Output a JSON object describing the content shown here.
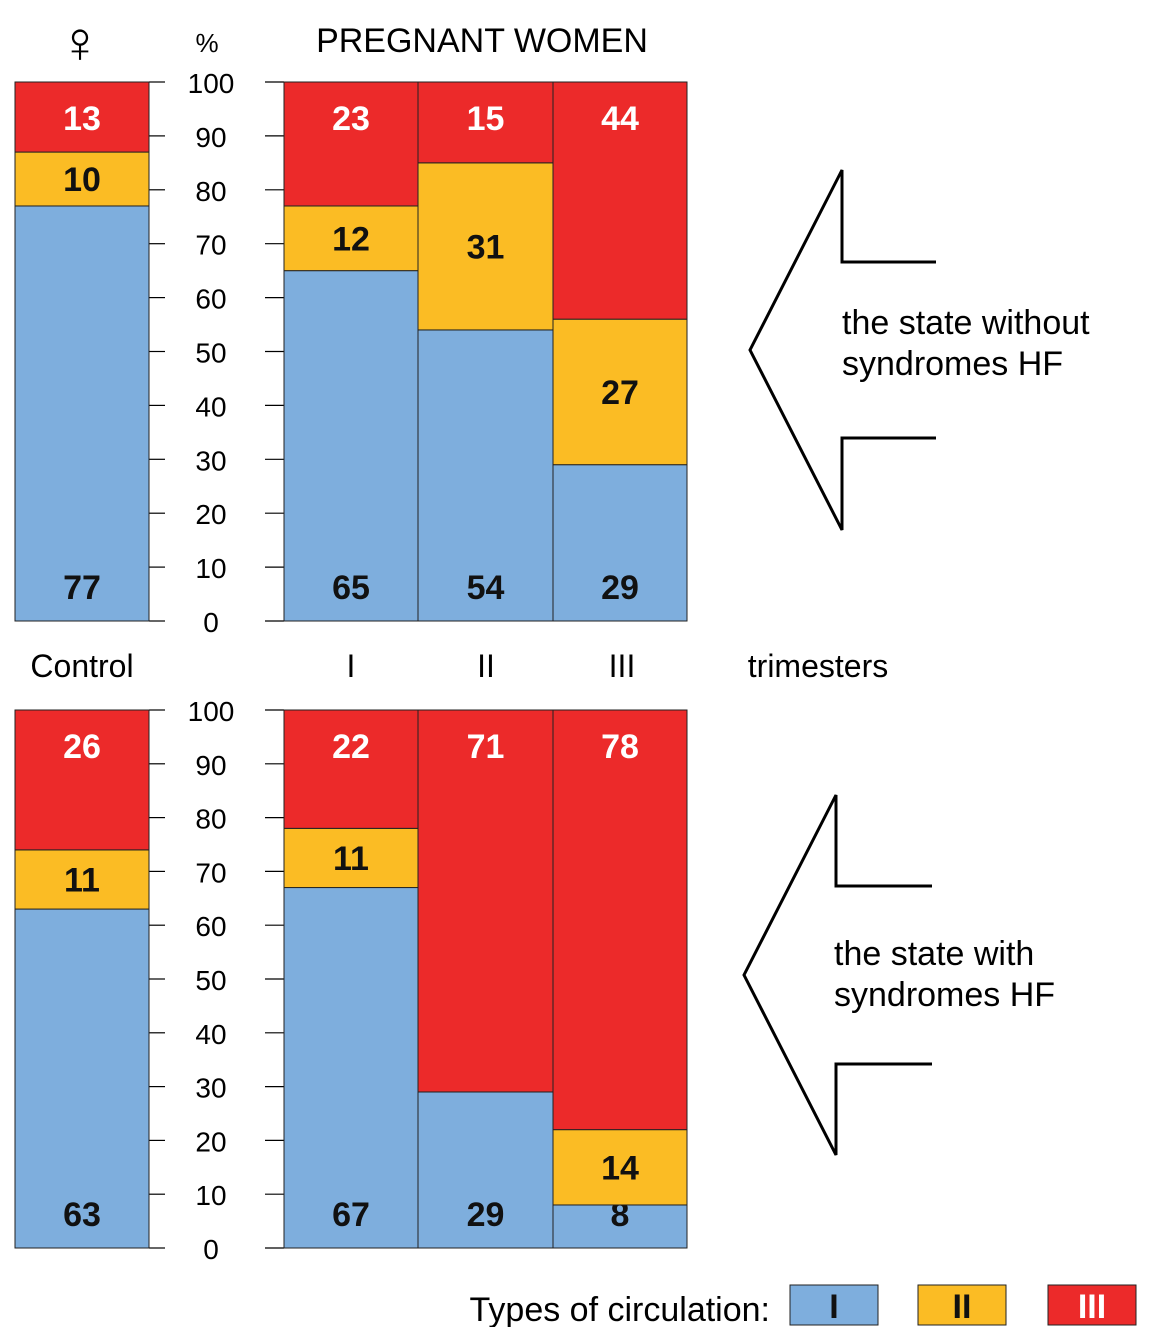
{
  "header": {
    "female_symbol": "♀",
    "percent_label": "%",
    "title": "PREGNANT WOMEN"
  },
  "labels": {
    "control": "Control",
    "trimesters": "trimesters",
    "trimester_ticks": [
      "I",
      "II",
      "III"
    ],
    "top_arrow": [
      "the state without",
      "syndromes HF"
    ],
    "bottom_arrow": [
      "the state with",
      "syndromes HF"
    ]
  },
  "legend": {
    "title": "Types of circulation:",
    "items": [
      {
        "label": "I",
        "color": "#7eaedd"
      },
      {
        "label": "II",
        "color": "#fbbc24"
      },
      {
        "label": "III",
        "color": "#ec2a2a"
      }
    ]
  },
  "chart_data": [
    {
      "type": "bar",
      "stacked": true,
      "panel": "top",
      "title": "",
      "categories": [
        "Control",
        "I",
        "II",
        "III"
      ],
      "series": [
        {
          "name": "I",
          "color": "#7eaedd",
          "values": [
            77,
            65,
            54,
            29
          ]
        },
        {
          "name": "II",
          "color": "#fbbc24",
          "values": [
            10,
            12,
            31,
            27
          ]
        },
        {
          "name": "III",
          "color": "#ec2a2a",
          "values": [
            13,
            23,
            15,
            44
          ]
        }
      ],
      "yticks": [
        0,
        10,
        20,
        30,
        40,
        50,
        60,
        70,
        80,
        90,
        100
      ],
      "ylim": [
        0,
        100
      ],
      "ylabel": "%"
    },
    {
      "type": "bar",
      "stacked": true,
      "panel": "bottom",
      "title": "",
      "categories": [
        "Control",
        "I",
        "II",
        "III"
      ],
      "series": [
        {
          "name": "I",
          "color": "#7eaedd",
          "values": [
            63,
            67,
            29,
            8
          ]
        },
        {
          "name": "II",
          "color": "#fbbc24",
          "values": [
            11,
            11,
            0,
            14
          ]
        },
        {
          "name": "III",
          "color": "#ec2a2a",
          "values": [
            26,
            22,
            71,
            78
          ]
        }
      ],
      "yticks": [
        0,
        10,
        20,
        30,
        40,
        50,
        60,
        70,
        80,
        90,
        100
      ],
      "ylim": [
        0,
        100
      ],
      "ylabel": ""
    }
  ]
}
